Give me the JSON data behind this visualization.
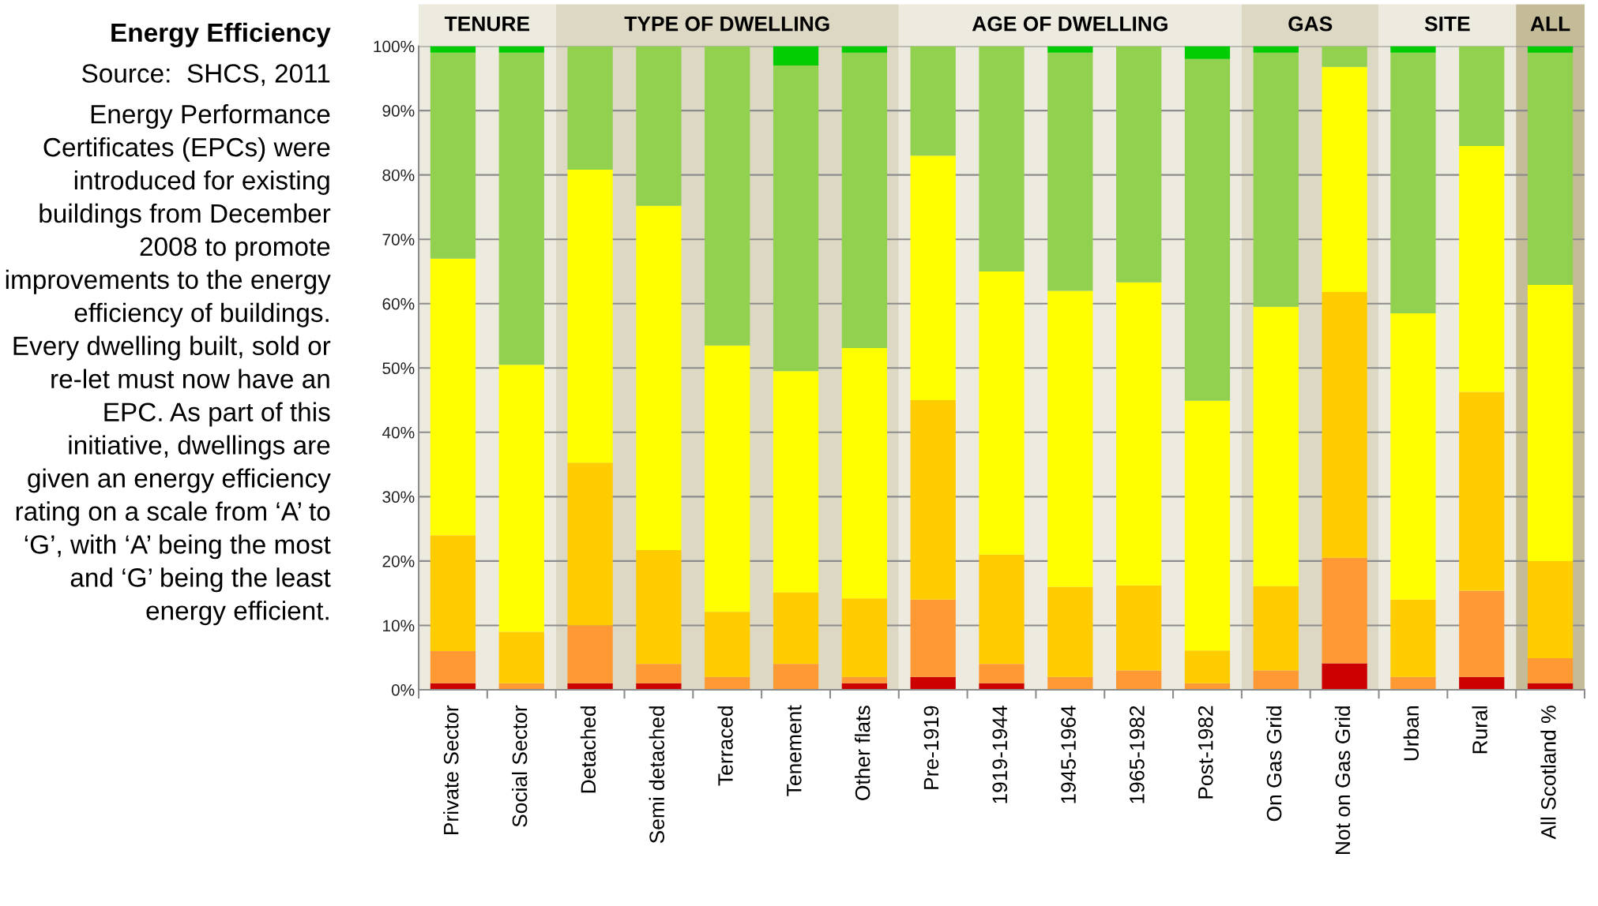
{
  "chart_data": {
    "type": "bar",
    "stacked": true,
    "title": "Energy Efficiency",
    "annotations": [
      "Source:  SHCS, 2011",
      "Energy Performance Certificates (EPCs) were introduced for existing buildings from December 2008 to promote improvements to the energy efficiency of buildings. Every dwelling built, sold or re-let must now have an EPC. As part of this initiative, dwellings are given an energy efficiency rating on a scale from ‘A’ to ‘G’, with ‘A’ being the most and ‘G’ being the least energy efficient."
    ],
    "categories": [
      "Private Sector",
      "Social Sector",
      "Detached",
      "Semi detached",
      "Terraced",
      "Tenement",
      "Other flats",
      "Pre-1919",
      "1919-1944",
      "1945-1964",
      "1965-1982",
      "Post-1982",
      "On Gas Grid",
      "Not on Gas Grid",
      "Urban",
      "Rural",
      "All Scotland %"
    ],
    "series": [
      {
        "color": "#cc0000",
        "values": [
          1,
          0,
          1,
          1,
          0,
          0,
          1,
          2,
          1,
          0,
          0,
          0,
          0,
          4.1,
          0,
          2,
          1
        ]
      },
      {
        "color": "#ff9933",
        "values": [
          5,
          1,
          9,
          3,
          2,
          4,
          1,
          12,
          3,
          2,
          3,
          1,
          3,
          16.4,
          2,
          13.4,
          3.9
        ]
      },
      {
        "color": "#ffcc00",
        "values": [
          18,
          8,
          25.3,
          17.7,
          10.1,
          11.1,
          12.2,
          31,
          17,
          14,
          13.2,
          5.1,
          13.1,
          41.3,
          12,
          30.9,
          15.1
        ]
      },
      {
        "color": "#ffff00",
        "values": [
          43,
          41.5,
          45.5,
          53.5,
          41.4,
          34.4,
          38.9,
          38,
          44,
          46,
          47.1,
          38.8,
          43.4,
          35,
          44.5,
          38.2,
          42.9
        ]
      },
      {
        "color": "#92d050",
        "values": [
          32,
          48.5,
          19.2,
          24.8,
          46.5,
          47.5,
          45.9,
          17,
          35,
          37,
          36.7,
          53.1,
          39.5,
          3.2,
          40.5,
          15.5,
          36.1
        ]
      },
      {
        "color": "#00cc00",
        "values": [
          1,
          1,
          0,
          0,
          0,
          3,
          1,
          0,
          0,
          1,
          0,
          2,
          1,
          0,
          1,
          0,
          1
        ]
      }
    ],
    "bands": [
      {
        "axis": "x",
        "from": "Private Sector",
        "to": "Social Sector",
        "label": "TENURE",
        "color": "#edeae0"
      },
      {
        "axis": "x",
        "from": "Detached",
        "to": "Other flats",
        "label": "TYPE OF DWELLING",
        "color": "#ddd8c4"
      },
      {
        "axis": "x",
        "from": "Pre-1919",
        "to": "Post-1982",
        "label": "AGE OF DWELLING",
        "color": "#edeae0"
      },
      {
        "axis": "x",
        "from": "On Gas Grid",
        "to": "Not on Gas Grid",
        "label": "GAS",
        "color": "#ddd8c4"
      },
      {
        "axis": "x",
        "from": "Urban",
        "to": "Rural",
        "label": "SITE",
        "color": "#edeae0"
      },
      {
        "axis": "x",
        "from": "All Scotland %",
        "to": "All Scotland %",
        "label": "ALL",
        "color": "#c4bb98"
      }
    ],
    "ylim": [
      0,
      100
    ],
    "yticks": [
      {
        "value": 0,
        "label": "0%"
      },
      {
        "value": 10,
        "label": "10%"
      },
      {
        "value": 20,
        "label": "20%"
      },
      {
        "value": 30,
        "label": "30%"
      },
      {
        "value": 40,
        "label": "40%"
      },
      {
        "value": 50,
        "label": "50%"
      },
      {
        "value": 60,
        "label": "60%"
      },
      {
        "value": 70,
        "label": "70%"
      },
      {
        "value": 80,
        "label": "80%"
      },
      {
        "value": 90,
        "label": "90%"
      },
      {
        "value": 100,
        "label": "100%"
      }
    ],
    "grid": "y"
  }
}
